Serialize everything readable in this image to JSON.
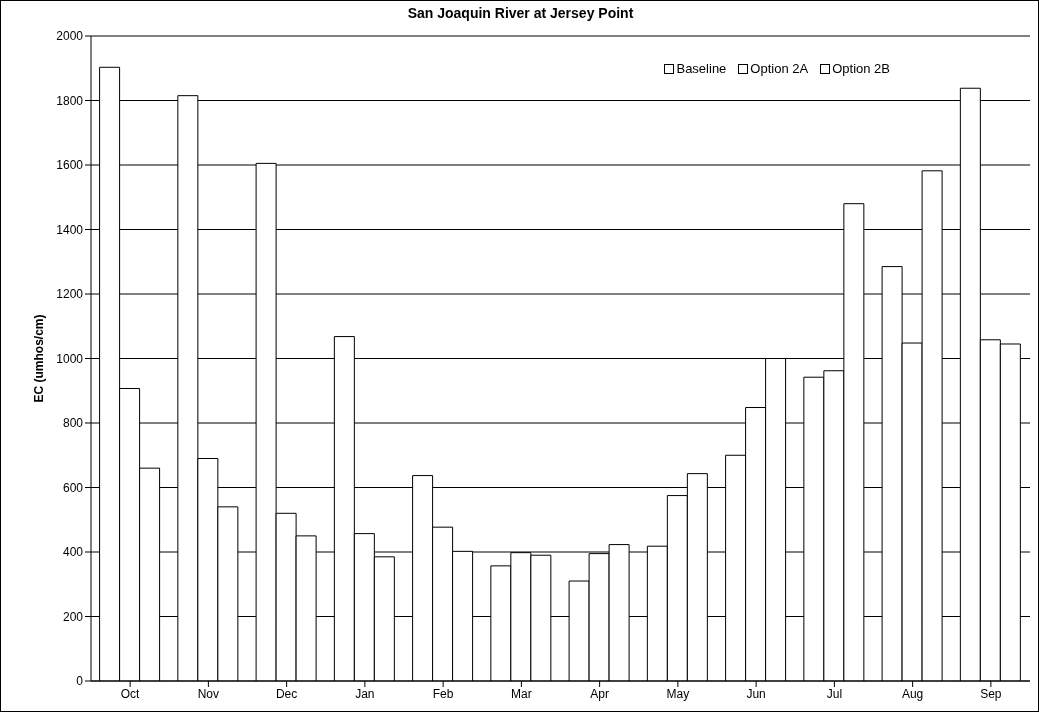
{
  "chart_data": {
    "type": "bar",
    "title": "San Joaquin River at Jersey Point",
    "ylabel": "EC (umhos/cm)",
    "categories": [
      "Oct",
      "Nov",
      "Dec",
      "Jan",
      "Feb",
      "Mar",
      "Apr",
      "May",
      "Jun",
      "Jul",
      "Aug",
      "Sep"
    ],
    "series": [
      {
        "name": "Baseline",
        "color": "#ffffff",
        "values": [
          1903,
          1815,
          1605,
          1068,
          637,
          357,
          310,
          418,
          700,
          942,
          1285,
          1838
        ]
      },
      {
        "name": "Option 2A",
        "color": "#ffffff",
        "values": [
          907,
          690,
          520,
          457,
          477,
          398,
          395,
          575,
          848,
          962,
          1048,
          1058
        ]
      },
      {
        "name": "Option 2B",
        "color": "#ffffff",
        "values": [
          660,
          540,
          450,
          385,
          402,
          390,
          423,
          643,
          1000,
          1480,
          1582,
          1045
        ]
      }
    ],
    "ylim": [
      0,
      2000
    ],
    "yticks": [
      0,
      200,
      400,
      600,
      800,
      1000,
      1200,
      1400,
      1600,
      1800,
      2000
    ],
    "grid": "y",
    "legend": "top right"
  }
}
